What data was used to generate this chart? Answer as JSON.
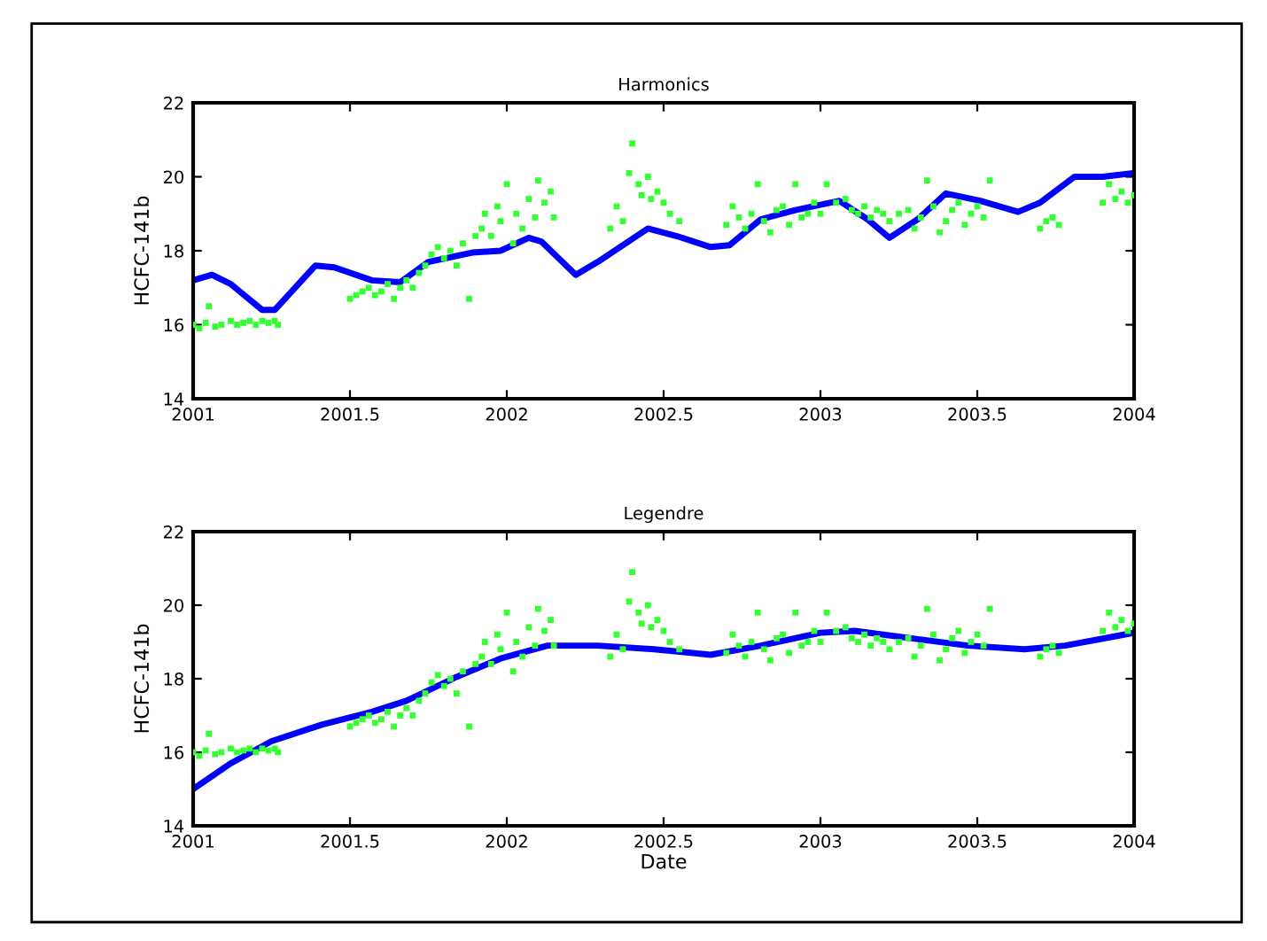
{
  "chart_data": [
    {
      "type": "line",
      "title": "Harmonics",
      "ylabel": "HCFC-141b",
      "xlim": [
        2001,
        2004
      ],
      "xticks": [
        2001,
        2001.5,
        2002,
        2002.5,
        2003,
        2003.5,
        2004
      ],
      "ylim": [
        14,
        22
      ],
      "yticks": [
        14,
        16,
        18,
        20,
        22
      ],
      "series": [
        {
          "type": "line",
          "color": "#0000ff",
          "x": [
            2001,
            2001.06,
            2001.12,
            2001.22,
            2001.26,
            2001.39,
            2001.45,
            2001.57,
            2001.66,
            2001.75,
            2001.89,
            2001.98,
            2002.07,
            2002.11,
            2002.22,
            2002.29,
            2002.45,
            2002.54,
            2002.65,
            2002.71,
            2002.81,
            2002.92,
            2003.06,
            2003.15,
            2003.22,
            2003.31,
            2003.4,
            2003.51,
            2003.63,
            2003.7,
            2003.81,
            2003.9,
            2004
          ],
          "values": [
            17.2,
            17.35,
            17.1,
            16.4,
            16.4,
            17.6,
            17.55,
            17.2,
            17.15,
            17.7,
            17.95,
            18.0,
            18.35,
            18.25,
            17.35,
            17.7,
            18.6,
            18.4,
            18.1,
            18.15,
            18.85,
            19.1,
            19.35,
            18.85,
            18.35,
            18.85,
            19.55,
            19.35,
            19.05,
            19.3,
            20.0,
            20.0,
            20.1
          ]
        },
        {
          "type": "scatter",
          "color": "#33ff33",
          "marker": "square",
          "x": [
            2001.0,
            2001.02,
            2001.04,
            2001.05,
            2001.07,
            2001.09,
            2001.12,
            2001.14,
            2001.16,
            2001.18,
            2001.2,
            2001.22,
            2001.24,
            2001.26,
            2001.27,
            2001.5,
            2001.52,
            2001.54,
            2001.56,
            2001.58,
            2001.6,
            2001.62,
            2001.64,
            2001.66,
            2001.68,
            2001.7,
            2001.72,
            2001.74,
            2001.76,
            2001.78,
            2001.8,
            2001.82,
            2001.84,
            2001.86,
            2001.88,
            2001.9,
            2001.92,
            2001.93,
            2001.95,
            2001.97,
            2001.98,
            2002.0,
            2002.02,
            2002.03,
            2002.05,
            2002.07,
            2002.09,
            2002.1,
            2002.12,
            2002.14,
            2002.15,
            2002.33,
            2002.35,
            2002.37,
            2002.39,
            2002.4,
            2002.42,
            2002.43,
            2002.45,
            2002.46,
            2002.48,
            2002.5,
            2002.52,
            2002.55,
            2002.7,
            2002.72,
            2002.74,
            2002.76,
            2002.78,
            2002.8,
            2002.82,
            2002.84,
            2002.86,
            2002.88,
            2002.9,
            2002.92,
            2002.94,
            2002.96,
            2002.98,
            2003.0,
            2003.02,
            2003.05,
            2003.08,
            2003.1,
            2003.12,
            2003.14,
            2003.16,
            2003.18,
            2003.2,
            2003.22,
            2003.25,
            2003.28,
            2003.3,
            2003.32,
            2003.34,
            2003.36,
            2003.38,
            2003.4,
            2003.42,
            2003.44,
            2003.46,
            2003.48,
            2003.5,
            2003.52,
            2003.54,
            2003.7,
            2003.72,
            2003.74,
            2003.76,
            2003.9,
            2003.92,
            2003.94,
            2003.96,
            2003.98,
            2004.0
          ],
          "values": [
            16.0,
            15.9,
            16.05,
            16.5,
            15.95,
            16.0,
            16.1,
            16.0,
            16.05,
            16.1,
            16.0,
            16.1,
            16.05,
            16.1,
            16.0,
            16.7,
            16.8,
            16.9,
            17.0,
            16.8,
            16.9,
            17.1,
            16.7,
            17.0,
            17.2,
            17.0,
            17.4,
            17.6,
            17.9,
            18.1,
            17.8,
            18.0,
            17.6,
            18.2,
            16.7,
            18.4,
            18.6,
            19.0,
            18.4,
            19.2,
            18.8,
            19.8,
            18.2,
            19.0,
            18.6,
            19.4,
            18.9,
            19.9,
            19.3,
            19.6,
            18.9,
            18.6,
            19.2,
            18.8,
            20.1,
            20.9,
            19.8,
            19.5,
            20.0,
            19.4,
            19.6,
            19.3,
            19.0,
            18.8,
            18.7,
            19.2,
            18.9,
            18.6,
            19.0,
            19.8,
            18.8,
            18.5,
            19.1,
            19.2,
            18.7,
            19.8,
            18.9,
            19.0,
            19.3,
            19.0,
            19.8,
            19.3,
            19.4,
            19.1,
            19.0,
            19.2,
            18.9,
            19.1,
            19.0,
            18.8,
            19.0,
            19.1,
            18.6,
            18.9,
            19.9,
            19.2,
            18.5,
            18.8,
            19.1,
            19.3,
            18.7,
            19.0,
            19.2,
            18.9,
            19.9,
            18.6,
            18.8,
            18.9,
            18.7,
            19.3,
            19.8,
            19.4,
            19.6,
            19.3,
            19.5
          ]
        }
      ]
    },
    {
      "type": "line",
      "title": "Legendre",
      "xlabel": "Date",
      "ylabel": "HCFC-141b",
      "xlim": [
        2001,
        2004
      ],
      "xticks": [
        2001,
        2001.5,
        2002,
        2002.5,
        2003,
        2003.5,
        2004
      ],
      "ylim": [
        14,
        22
      ],
      "yticks": [
        14,
        16,
        18,
        20,
        22
      ],
      "series": [
        {
          "type": "line",
          "color": "#0000ff",
          "x": [
            2001,
            2001.12,
            2001.25,
            2001.41,
            2001.57,
            2001.68,
            2001.84,
            2001.98,
            2002.13,
            2002.29,
            2002.47,
            2002.65,
            2002.81,
            2003.0,
            2003.11,
            2003.29,
            2003.47,
            2003.65,
            2003.78,
            2004
          ],
          "values": [
            15.0,
            15.7,
            16.3,
            16.75,
            17.1,
            17.4,
            18.05,
            18.55,
            18.9,
            18.9,
            18.8,
            18.65,
            18.9,
            19.25,
            19.3,
            19.1,
            18.9,
            18.8,
            18.9,
            19.25
          ]
        },
        {
          "type": "scatter",
          "color": "#33ff33",
          "marker": "square",
          "x": [
            2001.0,
            2001.02,
            2001.04,
            2001.05,
            2001.07,
            2001.09,
            2001.12,
            2001.14,
            2001.16,
            2001.18,
            2001.2,
            2001.22,
            2001.24,
            2001.26,
            2001.27,
            2001.5,
            2001.52,
            2001.54,
            2001.56,
            2001.58,
            2001.6,
            2001.62,
            2001.64,
            2001.66,
            2001.68,
            2001.7,
            2001.72,
            2001.74,
            2001.76,
            2001.78,
            2001.8,
            2001.82,
            2001.84,
            2001.86,
            2001.88,
            2001.9,
            2001.92,
            2001.93,
            2001.95,
            2001.97,
            2001.98,
            2002.0,
            2002.02,
            2002.03,
            2002.05,
            2002.07,
            2002.09,
            2002.1,
            2002.12,
            2002.14,
            2002.15,
            2002.33,
            2002.35,
            2002.37,
            2002.39,
            2002.4,
            2002.42,
            2002.43,
            2002.45,
            2002.46,
            2002.48,
            2002.5,
            2002.52,
            2002.55,
            2002.7,
            2002.72,
            2002.74,
            2002.76,
            2002.78,
            2002.8,
            2002.82,
            2002.84,
            2002.86,
            2002.88,
            2002.9,
            2002.92,
            2002.94,
            2002.96,
            2002.98,
            2003.0,
            2003.02,
            2003.05,
            2003.08,
            2003.1,
            2003.12,
            2003.14,
            2003.16,
            2003.18,
            2003.2,
            2003.22,
            2003.25,
            2003.28,
            2003.3,
            2003.32,
            2003.34,
            2003.36,
            2003.38,
            2003.4,
            2003.42,
            2003.44,
            2003.46,
            2003.48,
            2003.5,
            2003.52,
            2003.54,
            2003.7,
            2003.72,
            2003.74,
            2003.76,
            2003.9,
            2003.92,
            2003.94,
            2003.96,
            2003.98,
            2004.0
          ],
          "values": [
            16.0,
            15.9,
            16.05,
            16.5,
            15.95,
            16.0,
            16.1,
            16.0,
            16.05,
            16.1,
            16.0,
            16.1,
            16.05,
            16.1,
            16.0,
            16.7,
            16.8,
            16.9,
            17.0,
            16.8,
            16.9,
            17.1,
            16.7,
            17.0,
            17.2,
            17.0,
            17.4,
            17.6,
            17.9,
            18.1,
            17.8,
            18.0,
            17.6,
            18.2,
            16.7,
            18.4,
            18.6,
            19.0,
            18.4,
            19.2,
            18.8,
            19.8,
            18.2,
            19.0,
            18.6,
            19.4,
            18.9,
            19.9,
            19.3,
            19.6,
            18.9,
            18.6,
            19.2,
            18.8,
            20.1,
            20.9,
            19.8,
            19.5,
            20.0,
            19.4,
            19.6,
            19.3,
            19.0,
            18.8,
            18.7,
            19.2,
            18.9,
            18.6,
            19.0,
            19.8,
            18.8,
            18.5,
            19.1,
            19.2,
            18.7,
            19.8,
            18.9,
            19.0,
            19.3,
            19.0,
            19.8,
            19.3,
            19.4,
            19.1,
            19.0,
            19.2,
            18.9,
            19.1,
            19.0,
            18.8,
            19.0,
            19.1,
            18.6,
            18.9,
            19.9,
            19.2,
            18.5,
            18.8,
            19.1,
            19.3,
            18.7,
            19.0,
            19.2,
            18.9,
            19.9,
            18.6,
            18.8,
            18.9,
            18.7,
            19.3,
            19.8,
            19.4,
            19.6,
            19.3,
            19.5
          ]
        }
      ]
    }
  ]
}
